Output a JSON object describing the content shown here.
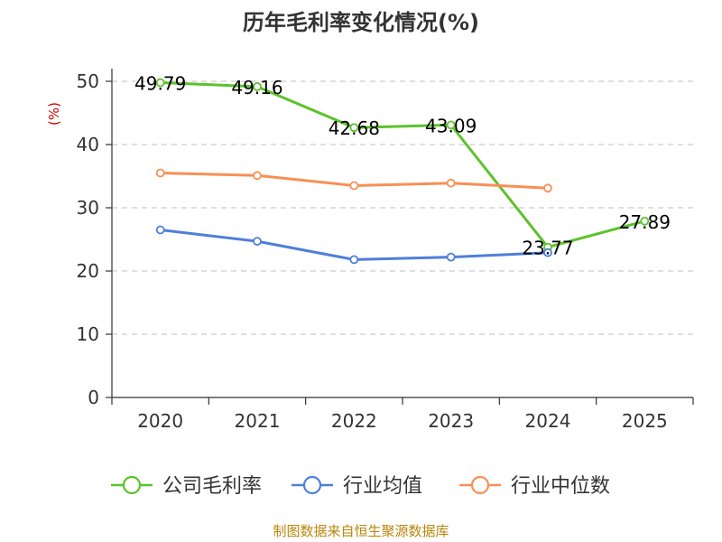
{
  "title": "历年毛利率变化情况(%)",
  "source": "制图数据来自恒生聚源数据库",
  "colors": {
    "gross_margin": "#5cc22b",
    "industry_avg": "#4f7fd9",
    "industry_median": "#f79054",
    "grid": "#cccccc",
    "axis": "#333333",
    "unit": "#cc0000",
    "source": "#b8860b"
  },
  "chart_data": {
    "type": "line",
    "title": "历年毛利率变化情况(%)",
    "ylabel": "(%)",
    "categories": [
      "2020",
      "2021",
      "2022",
      "2023",
      "2024",
      "2025"
    ],
    "ylim": [
      0,
      50
    ],
    "yticks": [
      0,
      10,
      20,
      30,
      40,
      50
    ],
    "grid": true,
    "legend_position": "bottom",
    "series": [
      {
        "name": "公司毛利率",
        "values": [
          49.79,
          49.16,
          42.68,
          43.09,
          23.77,
          27.89
        ],
        "labels": [
          "49.79",
          "49.16",
          "42.68",
          "43.09",
          "23.77",
          "27.89"
        ]
      },
      {
        "name": "行业均值",
        "values": [
          26.5,
          24.7,
          21.8,
          22.2,
          22.9,
          null
        ]
      },
      {
        "name": "行业中位数",
        "values": [
          35.5,
          35.1,
          33.5,
          33.9,
          33.1,
          null
        ]
      }
    ]
  }
}
